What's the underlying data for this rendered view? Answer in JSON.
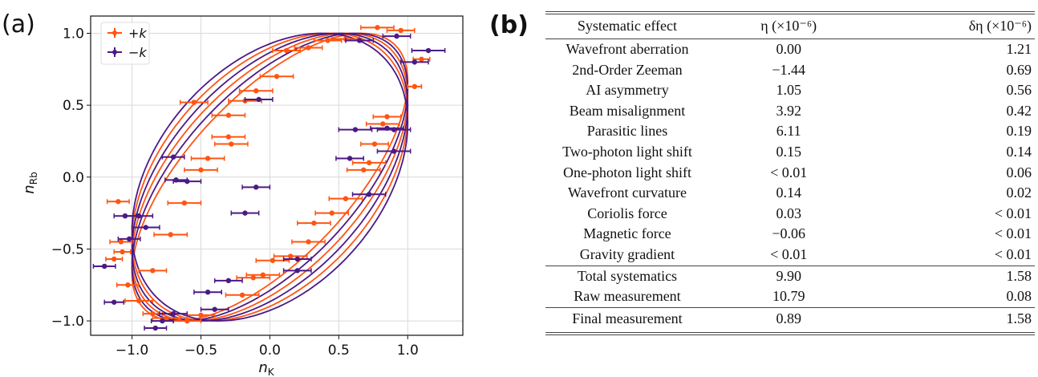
{
  "panel_a": {
    "label": "(a)",
    "chart_data": {
      "type": "scatter",
      "xlabel": "n",
      "xlabel_sub": "K",
      "ylabel": "n",
      "ylabel_sub": "Rb",
      "xlim": [
        -1.3,
        1.4
      ],
      "ylim": [
        -1.1,
        1.12
      ],
      "xticks": [
        -1.0,
        -0.5,
        0.0,
        0.5,
        1.0
      ],
      "xtick_labels": [
        "−1.0",
        "−0.5",
        "0.0",
        "0.5",
        "1.0"
      ],
      "yticks": [
        -1.0,
        -0.5,
        0.0,
        0.5,
        1.0
      ],
      "ytick_labels": [
        "−1.0",
        "−0.5",
        "0.0",
        "0.5",
        "1.0"
      ],
      "grid": true,
      "legend_position": "top-left",
      "series": [
        {
          "name": "+k",
          "color": "#ff5511",
          "ellipse_phases_deg": [
            48,
            56,
            64
          ],
          "points": [
            {
              "x": -1.1,
              "y": -0.17,
              "xerr": 0.08
            },
            {
              "x": -1.08,
              "y": -0.45,
              "xerr": 0.08
            },
            {
              "x": -1.07,
              "y": -0.52,
              "xerr": 0.06
            },
            {
              "x": -1.13,
              "y": -0.57,
              "xerr": 0.06
            },
            {
              "x": -1.03,
              "y": -0.75,
              "xerr": 0.08
            },
            {
              "x": -0.95,
              "y": -0.86,
              "xerr": 0.1
            },
            {
              "x": -0.85,
              "y": -0.95,
              "xerr": 0.07
            },
            {
              "x": -0.75,
              "y": -0.98,
              "xerr": 0.1
            },
            {
              "x": -0.6,
              "y": -1.0,
              "xerr": 0.1
            },
            {
              "x": -0.5,
              "y": -0.96,
              "xerr": 0.1
            },
            {
              "x": -0.85,
              "y": -0.65,
              "xerr": 0.1
            },
            {
              "x": -0.72,
              "y": -0.4,
              "xerr": 0.12
            },
            {
              "x": -0.62,
              "y": -0.18,
              "xerr": 0.12
            },
            {
              "x": -0.5,
              "y": 0.05,
              "xerr": 0.12
            },
            {
              "x": -0.45,
              "y": 0.13,
              "xerr": 0.12
            },
            {
              "x": -0.3,
              "y": 0.28,
              "xerr": 0.12
            },
            {
              "x": -0.55,
              "y": 0.52,
              "xerr": 0.1
            },
            {
              "x": -0.28,
              "y": 0.23,
              "xerr": 0.12
            },
            {
              "x": -0.3,
              "y": 0.43,
              "xerr": 0.12
            },
            {
              "x": -0.18,
              "y": 0.53,
              "xerr": 0.12
            },
            {
              "x": -0.1,
              "y": 0.6,
              "xerr": 0.12
            },
            {
              "x": 0.05,
              "y": 0.7,
              "xerr": 0.12
            },
            {
              "x": 0.12,
              "y": 0.88,
              "xerr": 0.1
            },
            {
              "x": 0.28,
              "y": 0.9,
              "xerr": 0.1
            },
            {
              "x": 0.42,
              "y": 0.95,
              "xerr": 0.1
            },
            {
              "x": 0.55,
              "y": 0.96,
              "xerr": 0.1
            },
            {
              "x": 0.78,
              "y": 1.04,
              "xerr": 0.12
            },
            {
              "x": 0.95,
              "y": 1.02,
              "xerr": 0.1
            },
            {
              "x": 1.1,
              "y": 0.82,
              "xerr": 0.06
            },
            {
              "x": 1.05,
              "y": 0.63,
              "xerr": 0.05
            },
            {
              "x": 0.85,
              "y": 0.42,
              "xerr": 0.1
            },
            {
              "x": 0.82,
              "y": 0.37,
              "xerr": 0.12
            },
            {
              "x": 0.76,
              "y": 0.23,
              "xerr": 0.1
            },
            {
              "x": 0.72,
              "y": 0.1,
              "xerr": 0.12
            },
            {
              "x": 0.68,
              "y": 0.05,
              "xerr": 0.12
            },
            {
              "x": 0.55,
              "y": -0.15,
              "xerr": 0.12
            },
            {
              "x": 0.45,
              "y": -0.25,
              "xerr": 0.12
            },
            {
              "x": 0.32,
              "y": -0.32,
              "xerr": 0.12
            },
            {
              "x": 0.28,
              "y": -0.45,
              "xerr": 0.12
            },
            {
              "x": 0.15,
              "y": -0.55,
              "xerr": 0.12
            },
            {
              "x": 0.02,
              "y": -0.58,
              "xerr": 0.12
            },
            {
              "x": -0.05,
              "y": -0.68,
              "xerr": 0.12
            },
            {
              "x": -0.12,
              "y": -0.7,
              "xerr": 0.12
            },
            {
              "x": -0.2,
              "y": -0.82,
              "xerr": 0.12
            }
          ]
        },
        {
          "name": "−k",
          "color": "#4b1a86",
          "ellipse_phases_deg": [
            52,
            60,
            68
          ],
          "points": [
            {
              "x": -1.2,
              "y": -0.62,
              "xerr": 0.08
            },
            {
              "x": -1.13,
              "y": -0.87,
              "xerr": 0.07
            },
            {
              "x": -1.05,
              "y": -0.27,
              "xerr": 0.08
            },
            {
              "x": -1.02,
              "y": -0.43,
              "xerr": 0.08
            },
            {
              "x": -0.95,
              "y": -0.27,
              "xerr": 0.1
            },
            {
              "x": -0.9,
              "y": -0.35,
              "xerr": 0.1
            },
            {
              "x": -0.83,
              "y": -1.05,
              "xerr": 0.08
            },
            {
              "x": -0.78,
              "y": -1.0,
              "xerr": 0.08
            },
            {
              "x": -0.7,
              "y": -0.95,
              "xerr": 0.1
            },
            {
              "x": -0.68,
              "y": -0.02,
              "xerr": 0.08
            },
            {
              "x": -0.7,
              "y": 0.14,
              "xerr": 0.08
            },
            {
              "x": -0.6,
              "y": -0.03,
              "xerr": 0.1
            },
            {
              "x": -0.45,
              "y": -0.8,
              "xerr": 0.1
            },
            {
              "x": -0.4,
              "y": -0.92,
              "xerr": 0.1
            },
            {
              "x": -0.3,
              "y": -0.72,
              "xerr": 0.1
            },
            {
              "x": -0.1,
              "y": -0.07,
              "xerr": 0.1
            },
            {
              "x": -0.08,
              "y": 0.54,
              "xerr": 0.1
            },
            {
              "x": -0.18,
              "y": -0.25,
              "xerr": 0.1
            },
            {
              "x": 0.2,
              "y": -0.57,
              "xerr": 0.1
            },
            {
              "x": 0.2,
              "y": -0.65,
              "xerr": 0.1
            },
            {
              "x": 0.58,
              "y": 0.13,
              "xerr": 0.1
            },
            {
              "x": 0.62,
              "y": 0.33,
              "xerr": 0.12
            },
            {
              "x": 0.72,
              "y": -0.12,
              "xerr": 0.12
            },
            {
              "x": 0.85,
              "y": 0.34,
              "xerr": 0.12
            },
            {
              "x": 0.9,
              "y": 0.33,
              "xerr": 0.12
            },
            {
              "x": 0.9,
              "y": 0.18,
              "xerr": 0.12
            },
            {
              "x": 0.92,
              "y": 0.98,
              "xerr": 0.1
            },
            {
              "x": 1.05,
              "y": 0.8,
              "xerr": 0.1
            },
            {
              "x": 1.15,
              "y": 0.88,
              "xerr": 0.12
            },
            {
              "x": 0.65,
              "y": 0.95,
              "xerr": 0.1
            }
          ]
        }
      ]
    }
  },
  "panel_b": {
    "label": "(b)",
    "headers": [
      "Systematic effect",
      "η (×10⁻⁶)",
      "δη (×10⁻⁶)"
    ],
    "rows": [
      [
        "Wavefront aberration",
        "0.00",
        "1.21"
      ],
      [
        "2nd-Order Zeeman",
        "−1.44",
        "0.69"
      ],
      [
        "AI asymmetry",
        "1.05",
        "0.56"
      ],
      [
        "Beam misalignment",
        "3.92",
        "0.42"
      ],
      [
        "Parasitic lines",
        "6.11",
        "0.19"
      ],
      [
        "Two-photon light shift",
        "0.15",
        "0.14"
      ],
      [
        "One-photon light shift",
        "< 0.01",
        "0.06"
      ],
      [
        "Wavefront curvature",
        "0.14",
        "0.02"
      ],
      [
        "Coriolis force",
        "0.03",
        "< 0.01"
      ],
      [
        "Magnetic force",
        "−0.06",
        "< 0.01"
      ],
      [
        "Gravity gradient",
        "< 0.01",
        "< 0.01"
      ],
      [
        "Total systematics",
        "9.90",
        "1.58"
      ],
      [
        "Raw measurement",
        "10.79",
        "0.08"
      ],
      [
        "Final measurement",
        "0.89",
        "1.58"
      ]
    ]
  }
}
